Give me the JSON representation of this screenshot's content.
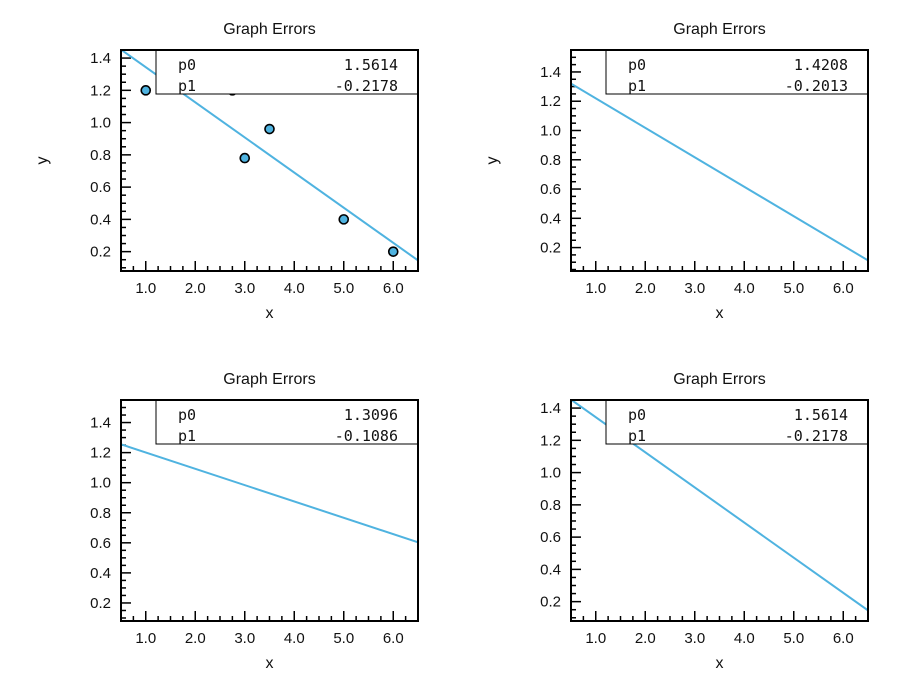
{
  "chart_data": [
    {
      "type": "scatter",
      "title": "Graph Errors",
      "xlabel": "x",
      "ylabel": "y",
      "xlim": [
        0.5,
        6.5
      ],
      "ylim": [
        0.08,
        1.45
      ],
      "xticks": [
        "1.0",
        "2.0",
        "3.0",
        "4.0",
        "5.0",
        "6.0"
      ],
      "yticks": [
        "0.2",
        "0.4",
        "0.6",
        "0.8",
        "1.0",
        "1.2",
        "1.4"
      ],
      "points": {
        "x": [
          1.0,
          2.75,
          3.0,
          3.5,
          5.0,
          6.0
        ],
        "y": [
          1.2,
          1.2,
          0.78,
          0.96,
          0.4,
          0.2
        ]
      },
      "fit": {
        "p0": 1.5614,
        "p1": -0.2178
      },
      "stats": [
        {
          "name": "p0",
          "value": "1.5614"
        },
        {
          "name": "p1",
          "value": "-0.2178"
        }
      ],
      "colors": {
        "line": "#4fb3e0",
        "marker": "#4fb3e0"
      }
    },
    {
      "type": "line",
      "title": "Graph Errors",
      "xlabel": "x",
      "ylabel": "y",
      "xlim": [
        0.5,
        6.5
      ],
      "ylim": [
        0.04,
        1.55
      ],
      "xticks": [
        "1.0",
        "2.0",
        "3.0",
        "4.0",
        "5.0",
        "6.0"
      ],
      "yticks": [
        "0.2",
        "0.4",
        "0.6",
        "0.8",
        "1.0",
        "1.2",
        "1.4"
      ],
      "points": {
        "x": [],
        "y": []
      },
      "fit": {
        "p0": 1.4208,
        "p1": -0.2013
      },
      "stats": [
        {
          "name": "p0",
          "value": "1.4208"
        },
        {
          "name": "p1",
          "value": "-0.2013"
        }
      ],
      "colors": {
        "line": "#4fb3e0",
        "marker": "#4fb3e0"
      }
    },
    {
      "type": "line",
      "title": "Graph Errors",
      "xlabel": "x",
      "ylabel": "",
      "xlim": [
        0.5,
        6.5
      ],
      "ylim": [
        0.08,
        1.55
      ],
      "xticks": [
        "1.0",
        "2.0",
        "3.0",
        "4.0",
        "5.0",
        "6.0"
      ],
      "yticks": [
        "0.2",
        "0.4",
        "0.6",
        "0.8",
        "1.0",
        "1.2",
        "1.4"
      ],
      "points": {
        "x": [],
        "y": []
      },
      "fit": {
        "p0": 1.3096,
        "p1": -0.1086
      },
      "stats": [
        {
          "name": "p0",
          "value": "1.3096"
        },
        {
          "name": "p1",
          "value": "-0.1086"
        }
      ],
      "colors": {
        "line": "#4fb3e0",
        "marker": "#4fb3e0"
      }
    },
    {
      "type": "line",
      "title": "Graph Errors",
      "xlabel": "x",
      "ylabel": "",
      "xlim": [
        0.5,
        6.5
      ],
      "ylim": [
        0.08,
        1.45
      ],
      "xticks": [
        "1.0",
        "2.0",
        "3.0",
        "4.0",
        "5.0",
        "6.0"
      ],
      "yticks": [
        "0.2",
        "0.4",
        "0.6",
        "0.8",
        "1.0",
        "1.2",
        "1.4"
      ],
      "points": {
        "x": [],
        "y": []
      },
      "fit": {
        "p0": 1.5614,
        "p1": -0.2178
      },
      "stats": [
        {
          "name": "p0",
          "value": "1.5614"
        },
        {
          "name": "p1",
          "value": "-0.2178"
        }
      ],
      "colors": {
        "line": "#4fb3e0",
        "marker": "#4fb3e0"
      }
    }
  ]
}
